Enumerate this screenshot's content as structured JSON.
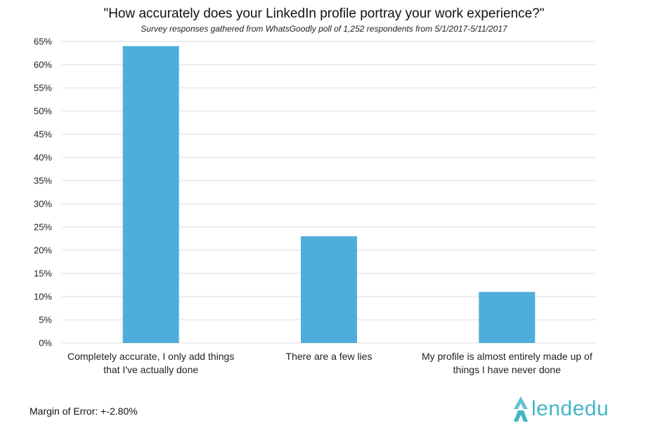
{
  "chart_data": {
    "type": "bar",
    "title": "\"How accurately does your LinkedIn profile portray your work experience?\"",
    "subtitle": "Survey responses gathered from WhatsGoodly poll of 1,252 respondents from 5/1/2017-5/11/2017",
    "categories": [
      [
        "Completely accurate, I only add things",
        "that I've actually done"
      ],
      [
        "There are a few lies"
      ],
      [
        "My profile is almost entirely made up of",
        "things I have never done"
      ]
    ],
    "values": [
      64,
      23,
      11
    ],
    "ylim": [
      0,
      65
    ],
    "yticks": [
      "0%",
      "5%",
      "10%",
      "15%",
      "20%",
      "25%",
      "30%",
      "35%",
      "40%",
      "45%",
      "50%",
      "55%",
      "60%",
      "65%"
    ],
    "grid": true,
    "bar_color": "#4eaedb"
  },
  "footer": {
    "note": "Margin of Error: +-2.80%"
  },
  "brand": {
    "name": "lendedu",
    "color": "#45b5c9"
  }
}
